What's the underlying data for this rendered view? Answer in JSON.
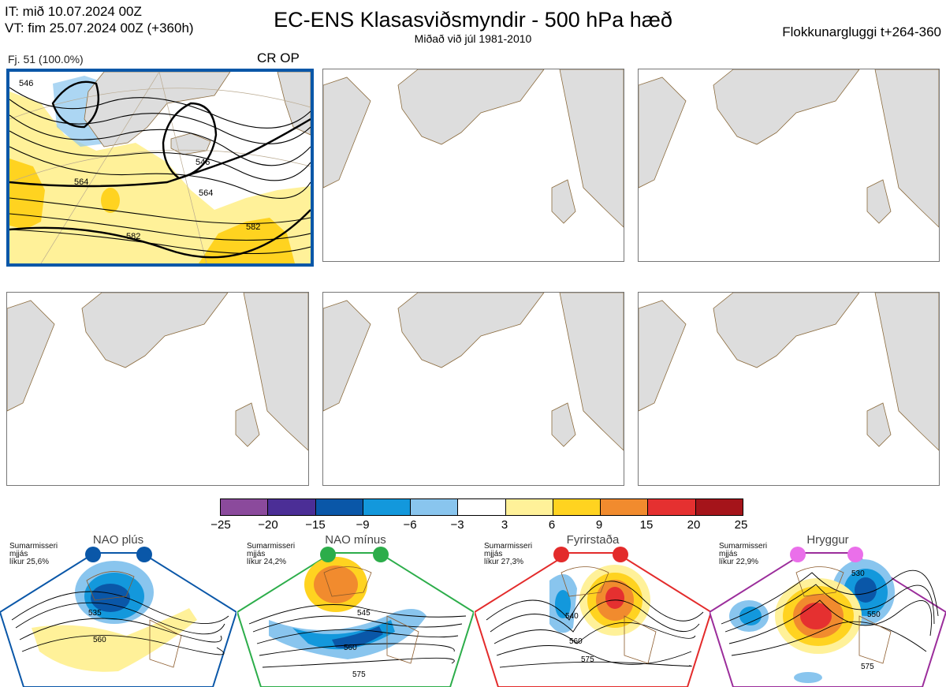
{
  "header": {
    "it": "IT: mið 10.07.2024 00Z",
    "vt": "VT: fim 25.07.2024 00Z  (+360h)",
    "title": "EC-ENS Klasasviðsmyndir - 500 hPa hæð",
    "subtitle": "Miðað við júl 1981-2010",
    "window": "Flokkunargluggi t+264-360"
  },
  "main_panel": {
    "member_label": "Fj. 51 (100.0%)",
    "tag": "CR OP",
    "contour_labels": [
      "546",
      "546",
      "564",
      "564",
      "582",
      "582"
    ]
  },
  "colorbar": {
    "ticks": [
      "−25",
      "−20",
      "−15",
      "−9",
      "−6",
      "−3",
      "3",
      "6",
      "9",
      "15",
      "20",
      "25"
    ],
    "colors": [
      "#8b4a9c",
      "#4b2e96",
      "#0a57a8",
      "#1398dc",
      "#89c5ee",
      "#ffffff",
      "#fff199",
      "#ffd320",
      "#f18b2e",
      "#e53030",
      "#a5141a"
    ]
  },
  "regimes": [
    {
      "name": "NAO plús",
      "season": "Sumarmisseri",
      "smoothing": "mjjás",
      "prob": "líkur 25,6%",
      "color": "#0a57a8",
      "labels": [
        "535",
        "560"
      ]
    },
    {
      "name": "NAO mínus",
      "season": "Sumarmisseri",
      "smoothing": "mjjás",
      "prob": "líkur 24,2%",
      "color": "#2cad4a",
      "labels": [
        "545",
        "560",
        "575"
      ]
    },
    {
      "name": "Fyrirstaða",
      "season": "Sumarmisseri",
      "smoothing": "mjjás",
      "prob": "líkur 27,3%",
      "color": "#e32b2b",
      "labels": [
        "540",
        "560",
        "575"
      ]
    },
    {
      "name": "Hryggur",
      "season": "Sumarmisseri",
      "smoothing": "mjjás",
      "prob": "líkur 22,9%",
      "color": "#9b2d9b",
      "labels": [
        "530",
        "550",
        "575"
      ]
    }
  ]
}
